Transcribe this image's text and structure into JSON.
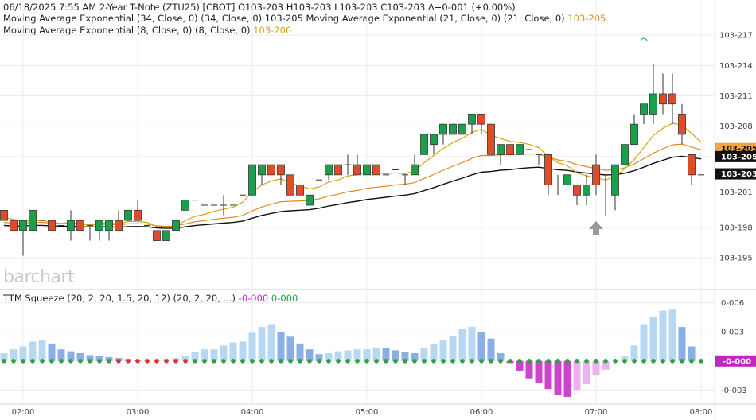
{
  "header": {
    "line1": "06/18/2025  7:55 AM 2-Year T-Note (ZTU25) [CBOT] O103-203 H103-203 L103-203 C103-203 Δ+0-001 (+0.00%)",
    "line2_prefix": "Moving Average Exponential (34, Close, 0)  (34, Close, 0) 103-205 Moving Average Exponential (21, Close, 0)  (21, Close, 0) ",
    "line2_value": "103-205",
    "line3_prefix": "Moving Average Exponential (8, Close, 0)  (8, Close, 0) ",
    "line3_value": "103-206"
  },
  "watermark": "barchart",
  "indicator": {
    "label": "TTM Squeeze (20, 2, 20, 1.5, 20, 12)  (20, 2, 20, ...) ",
    "value1": "-0-000",
    "value2": "0-000"
  },
  "colors": {
    "up": "#1aa04a",
    "down": "#e04b2a",
    "ema8": "#d4a418",
    "ema21": "#e08a1e",
    "ema34": "#111111",
    "hist_up_strong": "#8aaee6",
    "hist_up_weak": "#b6d8f2",
    "hist_dn_strong": "#cc44cc",
    "hist_dn_weak": "#eeb0ee",
    "dot_green": "#2ea043",
    "dot_red": "#e03030"
  },
  "chart_data": {
    "type": "candlestick",
    "symbol": "2-Year T-Note (ZTU25)",
    "price_ticks": [
      "103-217",
      "103-214",
      "103-211",
      "103-208",
      "103-205",
      "103-201",
      "103-198",
      "103-195"
    ],
    "price_tick_values": [
      103.217,
      103.214,
      103.211,
      103.208,
      103.205,
      103.2015,
      103.198,
      103.195
    ],
    "price_ylim": [
      103.1925,
      103.22
    ],
    "time_ticks": [
      "02:00",
      "03:00",
      "04:00",
      "05:00",
      "06:00",
      "07:00",
      "08:00"
    ],
    "time_tick_index": [
      2.0,
      14.0,
      26.0,
      38.0,
      50.0,
      62.0,
      73.0
    ],
    "price_labels": [
      {
        "text": "103-205",
        "value": 103.2058,
        "bg": "#f3a540",
        "fg": "#111111"
      },
      {
        "text": "103-205",
        "value": 103.205,
        "bg": "#111111",
        "fg": "#ffffff"
      },
      {
        "text": "103-203",
        "value": 103.2033,
        "bg": "#111111",
        "fg": "#ffffff"
      }
    ],
    "candles": [
      [
        103.1997,
        103.1997,
        103.1987,
        103.1987
      ],
      [
        103.1987,
        103.1987,
        103.1977,
        103.1977
      ],
      [
        103.1977,
        103.1987,
        103.1952,
        103.1987
      ],
      [
        103.1977,
        103.1997,
        103.1977,
        103.1997
      ],
      [
        103.1987,
        103.1987,
        103.1987,
        103.1987
      ],
      [
        103.1987,
        103.1987,
        103.1977,
        103.1977
      ],
      [
        103.1982,
        103.1982,
        103.1982,
        103.1982
      ],
      [
        103.1977,
        103.1997,
        103.1967,
        103.1987
      ],
      [
        103.1987,
        103.1987,
        103.1977,
        103.1977
      ],
      [
        103.1982,
        103.1982,
        103.1967,
        103.1982
      ],
      [
        103.1977,
        103.1987,
        103.1967,
        103.1987
      ],
      [
        103.1977,
        103.1987,
        103.1967,
        103.1987
      ],
      [
        103.1987,
        103.1997,
        103.1977,
        103.1977
      ],
      [
        103.1987,
        103.1997,
        103.1987,
        103.1997
      ],
      [
        103.1997,
        103.2007,
        103.1987,
        103.1987
      ],
      [
        103.1982,
        103.1982,
        103.1982,
        103.1982
      ],
      [
        103.1977,
        103.1977,
        103.1967,
        103.1967
      ],
      [
        103.1967,
        103.1977,
        103.1967,
        103.1977
      ],
      [
        103.1977,
        103.1987,
        103.1977,
        103.1987
      ],
      [
        103.1997,
        103.2007,
        103.1997,
        103.2007
      ],
      [
        103.2007,
        103.2007,
        103.2007,
        103.2007
      ],
      [
        103.2002,
        103.2002,
        103.2002,
        103.2002
      ],
      [
        103.2002,
        103.2002,
        103.2002,
        103.2002
      ],
      [
        103.2002,
        103.2012,
        103.1992,
        103.2002
      ],
      [
        103.2002,
        103.2002,
        103.2002,
        103.2002
      ],
      [
        103.2012,
        103.2012,
        103.2012,
        103.2012
      ],
      [
        103.2012,
        103.2042,
        103.2012,
        103.2042
      ],
      [
        103.2032,
        103.2042,
        103.2022,
        103.2042
      ],
      [
        103.2042,
        103.2042,
        103.2032,
        103.2032
      ],
      [
        103.2042,
        103.2042,
        103.2022,
        103.2032
      ],
      [
        103.2032,
        103.2032,
        103.2012,
        103.2012
      ],
      [
        103.2022,
        103.2022,
        103.2012,
        103.2012
      ],
      [
        103.2002,
        103.2012,
        103.2002,
        103.2012
      ],
      [
        103.2027,
        103.2027,
        103.2027,
        103.2027
      ],
      [
        103.2032,
        103.2042,
        103.2027,
        103.2042
      ],
      [
        103.2042,
        103.2042,
        103.2032,
        103.2032
      ],
      [
        103.2042,
        103.2052,
        103.2032,
        103.2042
      ],
      [
        103.2042,
        103.2052,
        103.2032,
        103.2032
      ],
      [
        103.2032,
        103.2042,
        103.2032,
        103.2042
      ],
      [
        103.2042,
        103.2042,
        103.2032,
        103.2032
      ],
      [
        103.2032,
        103.2032,
        103.2032,
        103.2032
      ],
      [
        103.2037,
        103.2037,
        103.2037,
        103.2037
      ],
      [
        103.2032,
        103.2032,
        103.2022,
        103.2032
      ],
      [
        103.2032,
        103.2052,
        103.2032,
        103.2042
      ],
      [
        103.2052,
        103.2072,
        103.2052,
        103.2072
      ],
      [
        103.2062,
        103.2072,
        103.2052,
        103.2072
      ],
      [
        103.2072,
        103.2082,
        103.2062,
        103.2082
      ],
      [
        103.2072,
        103.2082,
        103.2072,
        103.2082
      ],
      [
        103.2072,
        103.2082,
        103.2072,
        103.2082
      ],
      [
        103.2082,
        103.2092,
        103.2072,
        103.2092
      ],
      [
        103.2092,
        103.2092,
        103.2072,
        103.2082
      ],
      [
        103.2082,
        103.2082,
        103.2052,
        103.2052
      ],
      [
        103.2052,
        103.2062,
        103.2042,
        103.2062
      ],
      [
        103.2062,
        103.2062,
        103.2052,
        103.2052
      ],
      [
        103.2052,
        103.2062,
        103.2052,
        103.2062
      ],
      [
        103.2057,
        103.2057,
        103.2057,
        103.2057
      ],
      [
        103.2052,
        103.2052,
        103.2042,
        103.2052
      ],
      [
        103.2052,
        103.2052,
        103.2012,
        103.2022
      ],
      [
        103.2022,
        103.2032,
        103.2012,
        103.2022
      ],
      [
        103.2022,
        103.2032,
        103.2022,
        103.2032
      ],
      [
        103.2022,
        103.2022,
        103.2002,
        103.2012
      ],
      [
        103.2012,
        103.2032,
        103.2002,
        103.2022
      ],
      [
        103.2042,
        103.2052,
        103.2012,
        103.2022
      ],
      [
        103.2022,
        103.2032,
        103.1992,
        103.2022
      ],
      [
        103.2012,
        103.2042,
        103.1997,
        103.2042
      ],
      [
        103.2042,
        103.2062,
        103.2042,
        103.2062
      ],
      [
        103.2062,
        103.2092,
        103.2062,
        103.2082
      ],
      [
        103.2092,
        103.2102,
        103.2082,
        103.2102
      ],
      [
        103.2092,
        103.2142,
        103.2082,
        103.2112
      ],
      [
        103.2112,
        103.2132,
        103.2092,
        103.2102
      ],
      [
        103.2112,
        103.2132,
        103.2082,
        103.2102
      ],
      [
        103.2092,
        103.2102,
        103.2062,
        103.2072
      ],
      [
        103.2052,
        103.2052,
        103.2022,
        103.2032
      ],
      [
        103.2032,
        103.2032,
        103.2032,
        103.2032
      ]
    ],
    "ema8": [
      103.199,
      103.1988,
      103.1986,
      103.1987,
      103.1987,
      103.1985,
      103.1984,
      103.1985,
      103.1983,
      103.1983,
      103.1984,
      103.1985,
      103.1983,
      103.1986,
      103.1986,
      103.1985,
      103.1981,
      103.198,
      103.1981,
      103.1987,
      103.1991,
      103.1993,
      103.1996,
      103.1998,
      103.2,
      103.2005,
      103.2015,
      103.2022,
      103.2026,
      103.2028,
      103.2024,
      103.2021,
      103.2018,
      103.202,
      103.2025,
      103.2027,
      103.2031,
      103.2032,
      103.2035,
      103.2034,
      103.2033,
      103.2034,
      103.2033,
      103.2036,
      103.2044,
      103.2051,
      103.2058,
      103.2064,
      103.2068,
      103.2074,
      103.2077,
      103.2071,
      103.2068,
      103.2065,
      103.2064,
      103.2062,
      103.2059,
      103.205,
      103.2044,
      103.2041,
      103.2034,
      103.2031,
      103.2029,
      103.2027,
      103.203,
      103.2038,
      103.2047,
      103.2059,
      103.2071,
      103.2078,
      103.2083,
      103.2081,
      103.2073,
      103.2064
    ]
  },
  "squeeze_data": {
    "ylim": [
      -0.0042,
      0.0072
    ],
    "ticks": [
      "0-006",
      "0-003",
      "-0-003"
    ],
    "tick_values": [
      0.006,
      0.003,
      -0.003
    ],
    "value_label": {
      "text": "-0-000",
      "value": 0.0,
      "bg": "#c026c0",
      "fg": "#ffffff"
    },
    "hist": [
      0.0008,
      0.0012,
      0.0015,
      0.002,
      0.0022,
      0.0018,
      0.0012,
      0.001,
      0.0008,
      0.0006,
      0.0005,
      0.0004,
      0.0003,
      0.0002,
      0.0001,
      0.0001,
      0.0001,
      0.0002,
      0.0003,
      0.0005,
      0.0009,
      0.0012,
      0.0012,
      0.0016,
      0.0019,
      0.002,
      0.0029,
      0.0035,
      0.0038,
      0.003,
      0.0025,
      0.0018,
      0.0012,
      0.0007,
      0.0008,
      0.001,
      0.0011,
      0.0012,
      0.0012,
      0.0014,
      0.0013,
      0.0011,
      0.0009,
      0.0008,
      0.0013,
      0.0017,
      0.0021,
      0.0026,
      0.0033,
      0.0035,
      0.003,
      0.0023,
      0.0008,
      -0.0002,
      -0.001,
      -0.0018,
      -0.0023,
      -0.0029,
      -0.0035,
      -0.0037,
      -0.003,
      -0.0024,
      -0.0015,
      -0.0009,
      0.0,
      0.0005,
      0.0016,
      0.0038,
      0.0045,
      0.0052,
      0.0053,
      0.0035,
      0.0015,
      0.0
    ],
    "dot_red_index": [
      12,
      13,
      14,
      15,
      16,
      17,
      18,
      19
    ]
  }
}
